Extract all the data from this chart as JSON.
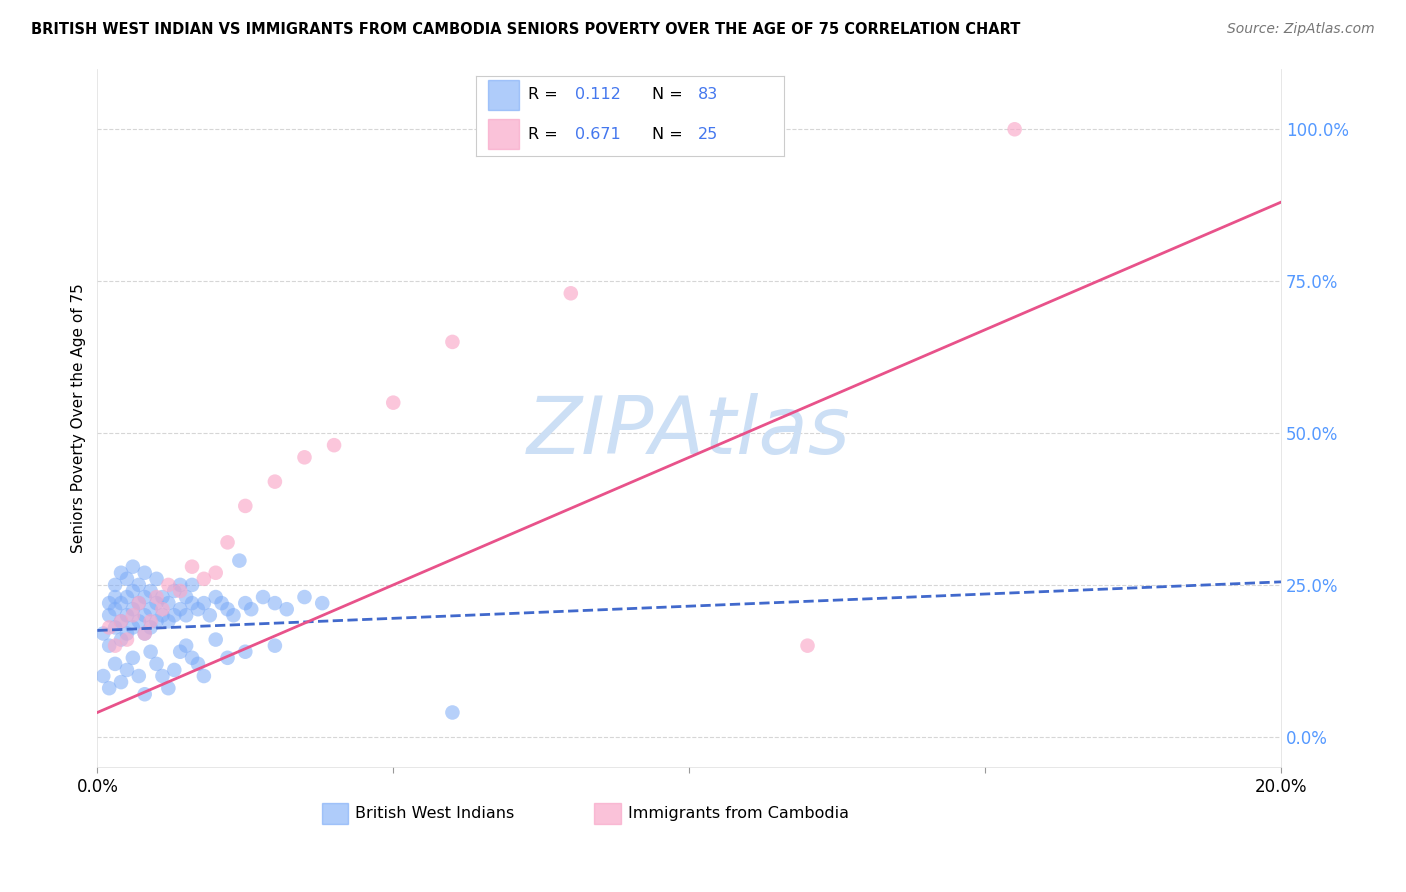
{
  "title": "BRITISH WEST INDIAN VS IMMIGRANTS FROM CAMBODIA SENIORS POVERTY OVER THE AGE OF 75 CORRELATION CHART",
  "source": "Source: ZipAtlas.com",
  "ylabel": "Seniors Poverty Over the Age of 75",
  "legend_blue_label": "British West Indians",
  "legend_pink_label": "Immigrants from Cambodia",
  "R_blue": "0.112",
  "N_blue": "83",
  "R_pink": "0.671",
  "N_pink": "25",
  "xlim": [
    0.0,
    0.2
  ],
  "ylim": [
    -0.05,
    1.1
  ],
  "right_yticks": [
    0.0,
    0.25,
    0.5,
    0.75,
    1.0
  ],
  "right_yticklabels": [
    "0.0%",
    "25.0%",
    "50.0%",
    "75.0%",
    "100.0%"
  ],
  "xticks": [
    0.0,
    0.05,
    0.1,
    0.15,
    0.2
  ],
  "xticklabels": [
    "0.0%",
    "",
    "",
    "",
    "20.0%"
  ],
  "blue_color": "#7baaf7",
  "pink_color": "#f9a8c9",
  "blue_line_color": "#4169cc",
  "pink_line_color": "#e8528a",
  "watermark": "ZIPAtlas",
  "watermark_color": "#ccdff5",
  "blue_scatter_x": [
    0.001,
    0.002,
    0.002,
    0.002,
    0.003,
    0.003,
    0.003,
    0.003,
    0.004,
    0.004,
    0.004,
    0.004,
    0.005,
    0.005,
    0.005,
    0.005,
    0.006,
    0.006,
    0.006,
    0.006,
    0.007,
    0.007,
    0.007,
    0.008,
    0.008,
    0.008,
    0.008,
    0.009,
    0.009,
    0.009,
    0.01,
    0.01,
    0.01,
    0.011,
    0.011,
    0.012,
    0.012,
    0.013,
    0.013,
    0.014,
    0.014,
    0.015,
    0.015,
    0.016,
    0.016,
    0.017,
    0.018,
    0.019,
    0.02,
    0.021,
    0.022,
    0.023,
    0.024,
    0.025,
    0.026,
    0.028,
    0.03,
    0.032,
    0.035,
    0.038,
    0.001,
    0.002,
    0.003,
    0.004,
    0.005,
    0.006,
    0.007,
    0.008,
    0.009,
    0.01,
    0.011,
    0.012,
    0.013,
    0.014,
    0.015,
    0.016,
    0.017,
    0.018,
    0.02,
    0.022,
    0.025,
    0.03,
    0.06
  ],
  "blue_scatter_y": [
    0.17,
    0.2,
    0.22,
    0.15,
    0.18,
    0.21,
    0.23,
    0.25,
    0.16,
    0.19,
    0.22,
    0.27,
    0.17,
    0.2,
    0.23,
    0.26,
    0.18,
    0.21,
    0.24,
    0.28,
    0.19,
    0.22,
    0.25,
    0.17,
    0.2,
    0.23,
    0.27,
    0.18,
    0.21,
    0.24,
    0.19,
    0.22,
    0.26,
    0.2,
    0.23,
    0.19,
    0.22,
    0.2,
    0.24,
    0.21,
    0.25,
    0.2,
    0.23,
    0.22,
    0.25,
    0.21,
    0.22,
    0.2,
    0.23,
    0.22,
    0.21,
    0.2,
    0.29,
    0.22,
    0.21,
    0.23,
    0.22,
    0.21,
    0.23,
    0.22,
    0.1,
    0.08,
    0.12,
    0.09,
    0.11,
    0.13,
    0.1,
    0.07,
    0.14,
    0.12,
    0.1,
    0.08,
    0.11,
    0.14,
    0.15,
    0.13,
    0.12,
    0.1,
    0.16,
    0.13,
    0.14,
    0.15,
    0.04
  ],
  "pink_scatter_x": [
    0.002,
    0.003,
    0.004,
    0.005,
    0.006,
    0.007,
    0.008,
    0.009,
    0.01,
    0.011,
    0.012,
    0.014,
    0.016,
    0.018,
    0.02,
    0.022,
    0.025,
    0.03,
    0.035,
    0.04,
    0.05,
    0.06,
    0.08,
    0.12,
    0.155
  ],
  "pink_scatter_y": [
    0.18,
    0.15,
    0.19,
    0.16,
    0.2,
    0.22,
    0.17,
    0.19,
    0.23,
    0.21,
    0.25,
    0.24,
    0.28,
    0.26,
    0.27,
    0.32,
    0.38,
    0.42,
    0.46,
    0.48,
    0.55,
    0.65,
    0.73,
    0.15,
    1.0
  ],
  "blue_trendline_x": [
    0.0,
    0.2
  ],
  "blue_trendline_y": [
    0.175,
    0.255
  ],
  "pink_trendline_x": [
    0.0,
    0.2
  ],
  "pink_trendline_y": [
    0.04,
    0.88
  ]
}
